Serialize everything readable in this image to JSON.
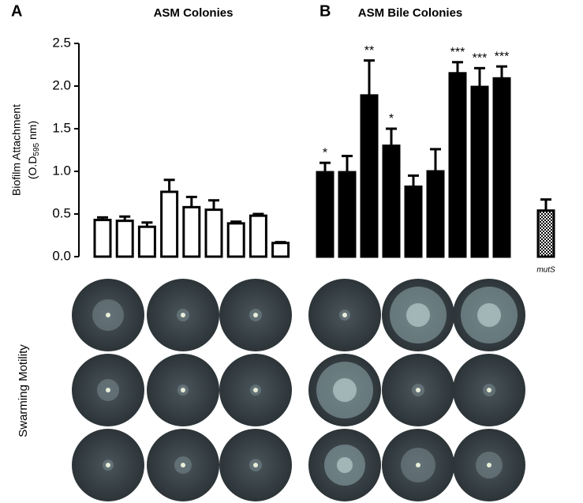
{
  "chart_data": {
    "type": "bar",
    "panels": [
      "A",
      "B"
    ],
    "group_titles": [
      "ASM Colonies",
      "ASM Bile Colonies"
    ],
    "ylabel": [
      "Biofilm Attachment",
      "(O.D",
      "595",
      " nm)"
    ],
    "side_label": "Swarming Motility",
    "categories": [
      null,
      null,
      null,
      null,
      null,
      null,
      null,
      null,
      null,
      null,
      null,
      null,
      null,
      null,
      null,
      null,
      null,
      null,
      "mutS"
    ],
    "values": [
      0.43,
      0.42,
      0.35,
      0.76,
      0.58,
      0.55,
      0.39,
      0.48,
      0.16,
      0.99,
      0.99,
      1.89,
      1.3,
      0.82,
      1.0,
      2.15,
      1.99,
      2.09,
      0.54
    ],
    "errors": [
      0.03,
      0.05,
      0.05,
      0.14,
      0.12,
      0.11,
      0.02,
      0.02,
      0.01,
      0.11,
      0.19,
      0.41,
      0.2,
      0.13,
      0.26,
      0.13,
      0.22,
      0.14,
      0.13
    ],
    "fills": [
      "#ffffff",
      "#ffffff",
      "#ffffff",
      "#ffffff",
      "#ffffff",
      "#ffffff",
      "#ffffff",
      "#ffffff",
      "#ffffff",
      "#000000",
      "#000000",
      "#000000",
      "#000000",
      "#000000",
      "#000000",
      "#000000",
      "#000000",
      "#000000",
      "hatched"
    ],
    "annotations": [
      {
        "index": 9,
        "text": "*"
      },
      {
        "index": 11,
        "text": "**"
      },
      {
        "index": 12,
        "text": "*"
      },
      {
        "index": 15,
        "text": "***"
      },
      {
        "index": 16,
        "text": "***"
      },
      {
        "index": 17,
        "text": "***"
      }
    ],
    "ylim": [
      0,
      2.5
    ],
    "yticks": [
      {
        "value": 0,
        "label": "0.0"
      },
      0.5,
      {
        "value": 1,
        "label": "1.0"
      },
      1.5,
      {
        "value": 2,
        "label": "2.0"
      },
      2.5
    ]
  }
}
